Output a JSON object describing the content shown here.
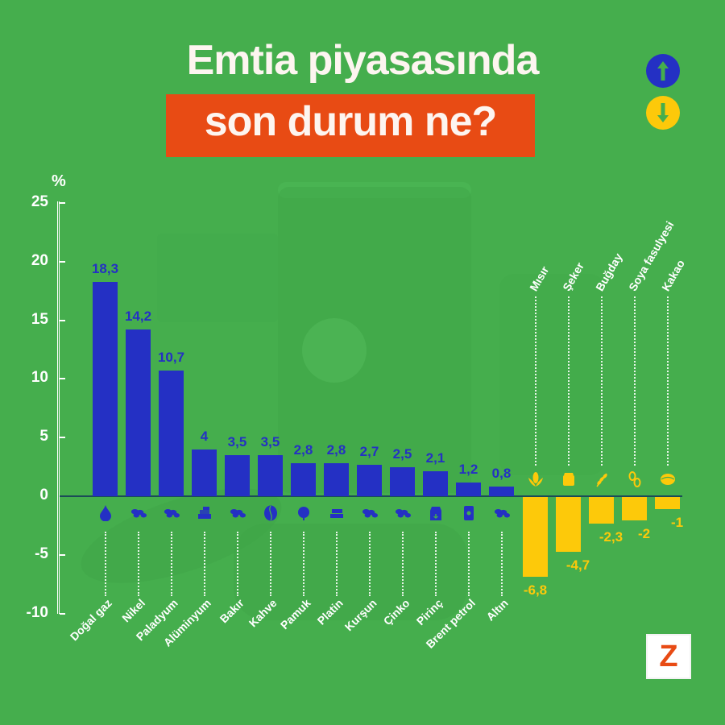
{
  "title": {
    "line1": "Emtia piyasasında",
    "line2": "son durum ne?"
  },
  "legend": {
    "up": {
      "icon": "arrow-up-icon",
      "color": "#2430c4",
      "meaning": "increase"
    },
    "down": {
      "icon": "arrow-down-icon",
      "color": "#fdc90a",
      "meaning": "decrease"
    }
  },
  "axis": {
    "unit": "%",
    "ticks": [
      "25",
      "20",
      "15",
      "10",
      "5",
      "0",
      "-5",
      "-10"
    ]
  },
  "logo": {
    "text": "Z"
  },
  "colors": {
    "background": "#45ae4d",
    "positive": "#2430c4",
    "negative": "#fdc90a",
    "title_box": "#e84b14"
  },
  "bars": [
    {
      "label": "Doğal gaz",
      "value": 18.3,
      "display": "18,3",
      "icon": "gas-drop-icon"
    },
    {
      "label": "Nikel",
      "value": 14.2,
      "display": "14,2",
      "icon": "metal-ore-icon"
    },
    {
      "label": "Paladyum",
      "value": 10.7,
      "display": "10,7",
      "icon": "metal-ore-icon"
    },
    {
      "label": "Alüminyum",
      "value": 4,
      "display": "4",
      "icon": "metal-bars-icon"
    },
    {
      "label": "Bakır",
      "value": 3.5,
      "display": "3,5",
      "icon": "metal-ore-icon"
    },
    {
      "label": "Kahve",
      "value": 3.5,
      "display": "3,5",
      "icon": "coffee-bean-icon"
    },
    {
      "label": "Pamuk",
      "value": 2.8,
      "display": "2,8",
      "icon": "cotton-icon"
    },
    {
      "label": "Platin",
      "value": 2.8,
      "display": "2,8",
      "icon": "ingots-icon"
    },
    {
      "label": "Kurşun",
      "value": 2.7,
      "display": "2,7",
      "icon": "metal-ore-icon"
    },
    {
      "label": "Çinko",
      "value": 2.5,
      "display": "2,5",
      "icon": "metal-ore-icon"
    },
    {
      "label": "Pirinç",
      "value": 2.1,
      "display": "2,1",
      "icon": "rice-sack-icon"
    },
    {
      "label": "Brent petrol",
      "value": 1.2,
      "display": "1,2",
      "icon": "oil-barrel-icon"
    },
    {
      "label": "Altın",
      "value": 0.8,
      "display": "0,8",
      "icon": "metal-ore-icon"
    },
    {
      "label": "Mısır",
      "value": -6.8,
      "display": "-6,8",
      "icon": "corn-icon"
    },
    {
      "label": "Şeker",
      "value": -4.7,
      "display": "-4,7",
      "icon": "sugar-sack-icon"
    },
    {
      "label": "Buğday",
      "value": -2.3,
      "display": "-2,3",
      "icon": "wheat-icon"
    },
    {
      "label": "Soya fasulyesi",
      "value": -2,
      "display": "-2",
      "icon": "soybean-icon"
    },
    {
      "label": "Kakao",
      "value": -1,
      "display": "-1",
      "icon": "cocoa-icon"
    }
  ],
  "chart_data": {
    "type": "bar",
    "title": "Emtia piyasasında son durum ne?",
    "xlabel": "",
    "ylabel": "%",
    "ylim": [
      -10,
      25
    ],
    "yticks": [
      -10,
      -5,
      0,
      5,
      10,
      15,
      20,
      25
    ],
    "grid": false,
    "legend_position": "top-right",
    "categories": [
      "Doğal gaz",
      "Nikel",
      "Paladyum",
      "Alüminyum",
      "Bakır",
      "Kahve",
      "Pamuk",
      "Platin",
      "Kurşun",
      "Çinko",
      "Pirinç",
      "Brent petrol",
      "Altın",
      "Mısır",
      "Şeker",
      "Buğday",
      "Soya fasulyesi",
      "Kakao"
    ],
    "values": [
      18.3,
      14.2,
      10.7,
      4,
      3.5,
      3.5,
      2.8,
      2.8,
      2.7,
      2.5,
      2.1,
      1.2,
      0.8,
      -6.8,
      -4.7,
      -2.3,
      -2,
      -1
    ],
    "series": [
      {
        "name": "Yükselenler",
        "color": "#2430c4",
        "values": [
          18.3,
          14.2,
          10.7,
          4,
          3.5,
          3.5,
          2.8,
          2.8,
          2.7,
          2.5,
          2.1,
          1.2,
          0.8
        ]
      },
      {
        "name": "Düşenler",
        "color": "#fdc90a",
        "values": [
          -6.8,
          -4.7,
          -2.3,
          -2,
          -1
        ]
      }
    ]
  }
}
